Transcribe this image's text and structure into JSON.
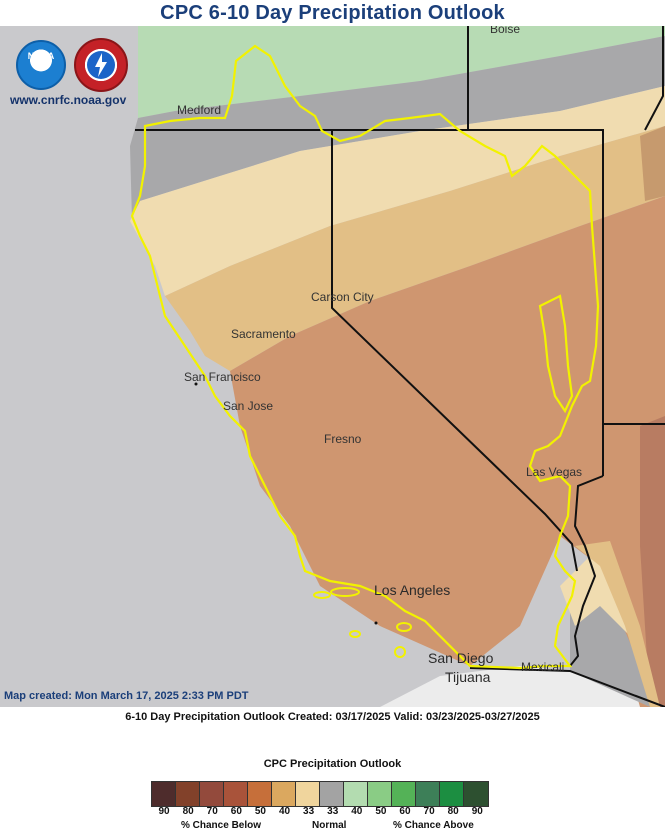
{
  "title": "CPC 6-10 Day Precipitation Outlook",
  "website": "www.cnrfc.noaa.gov",
  "logos": {
    "noaa": "NOAA",
    "nws": "NATIONAL WEATHER SERVICE"
  },
  "map_created": "Map created: Mon March 17, 2025 2:33 PM PDT",
  "caption": "6-10 Day Precipitation Outlook Created: 03/17/2025 Valid: 03/23/2025-03/27/2025",
  "cities": {
    "boise": "Boise",
    "medford": "Medford",
    "carson_city": "Carson City",
    "sacramento": "Sacramento",
    "san_francisco": "San Francisco",
    "san_jose": "San Jose",
    "fresno": "Fresno",
    "las_vegas": "Las Vegas",
    "los_angeles": "Los Angeles",
    "san_diego": "San Diego",
    "tijuana": "Tijuana",
    "mexicali": "Mexicali"
  },
  "legend": {
    "title": "CPC Precipitation Outlook",
    "ticks": [
      "90",
      "80",
      "70",
      "60",
      "50",
      "40",
      "33",
      "33",
      "40",
      "50",
      "60",
      "70",
      "80",
      "90"
    ],
    "colors": [
      "#4e2c2c",
      "#82412a",
      "#934a3c",
      "#a9533a",
      "#c66f3a",
      "#dba85f",
      "#f0d59d",
      "#a3a3a3",
      "#b3dcb0",
      "#8acc85",
      "#54b257",
      "#3d7f58",
      "#1c8e41",
      "#2d5030"
    ],
    "below_label": "% Chance Below",
    "normal_label": "Normal",
    "above_label": "% Chance Above"
  },
  "map_colors": {
    "ocean": "#c9c9cc",
    "normal": "#a8a8aa",
    "above_33": "#b7dbb4",
    "below_33": "#f0dcb0",
    "below_40": "#e2bf86",
    "below_50": "#cf9670",
    "below_60": "#b87c62",
    "cnrfc_boundary": "#f2f200"
  }
}
